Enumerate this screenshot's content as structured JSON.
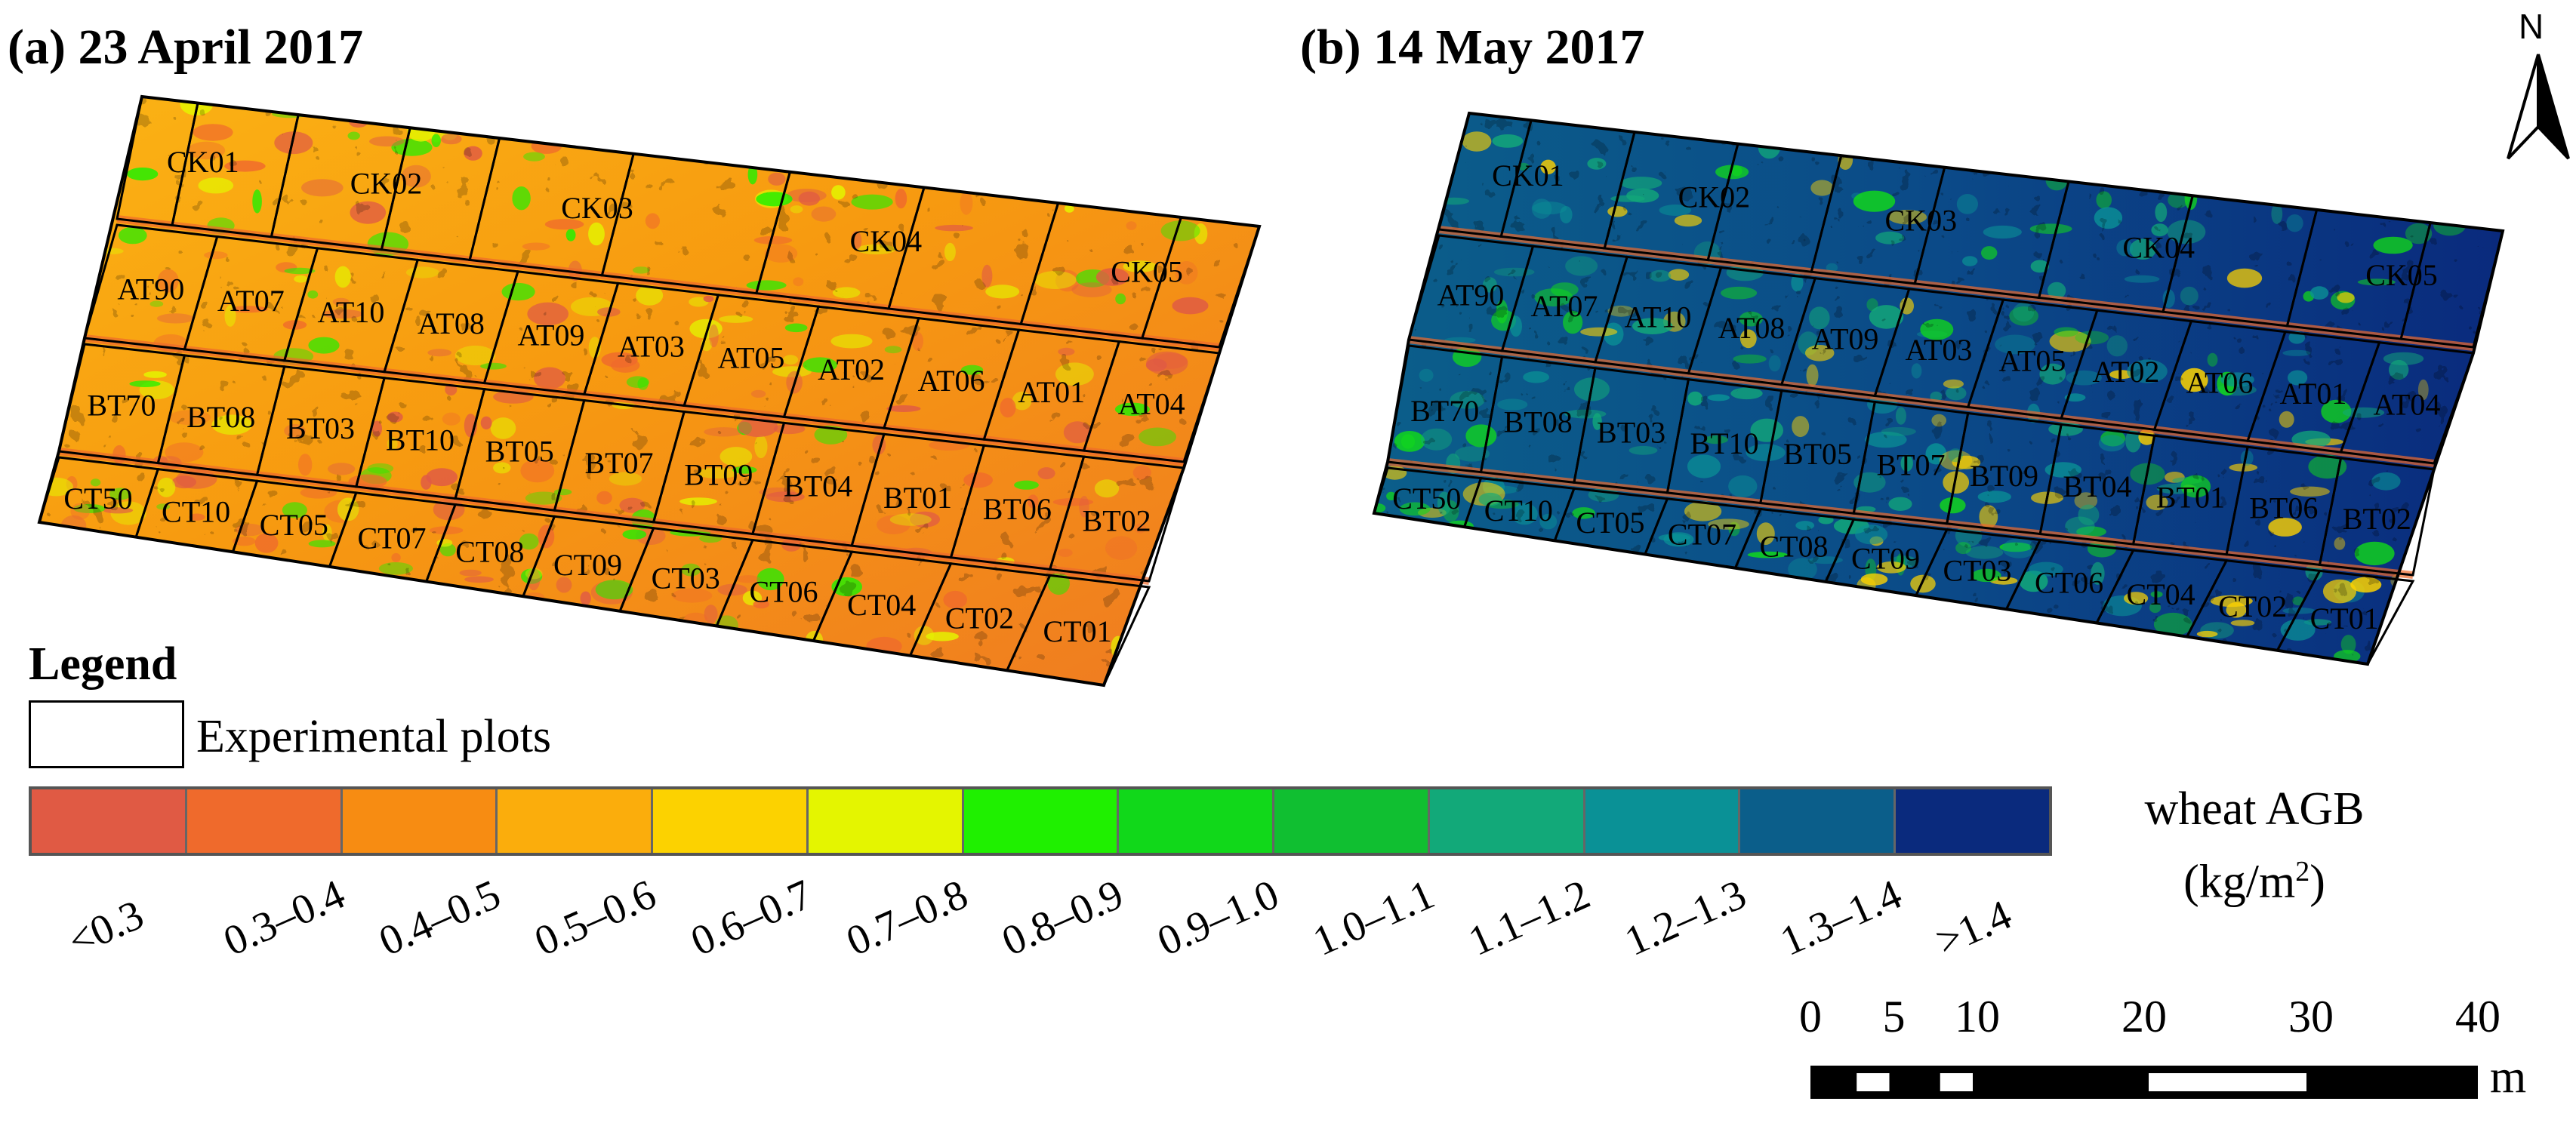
{
  "panels": [
    {
      "title": "(a)  23 April 2017",
      "rows": [
        [
          "CK01",
          "CK02",
          "CK03",
          "CK04",
          "CK05"
        ],
        [
          "AT90",
          "AT07",
          "AT10",
          "AT08",
          "AT09",
          "AT03",
          "AT05",
          "AT02",
          "AT06",
          "AT01",
          "AT04"
        ],
        [
          "BT70",
          "BT08",
          "BT03",
          "BT10",
          "BT05",
          "BT07",
          "BT09",
          "BT04",
          "BT01",
          "BT06",
          "BT02"
        ],
        [
          "CT50",
          "CT10",
          "CT05",
          "CT07",
          "CT08",
          "CT09",
          "CT03",
          "CT06",
          "CT04",
          "CT02",
          "CT01"
        ]
      ]
    },
    {
      "title": "(b)  14 May 2017",
      "rows": [
        [
          "CK01",
          "CK02",
          "CK03",
          "CK04",
          "CK05"
        ],
        [
          "AT90",
          "AT07",
          "AT10",
          "AT08",
          "AT09",
          "AT03",
          "AT05",
          "AT02",
          "AT06",
          "AT01",
          "AT04"
        ],
        [
          "BT70",
          "BT08",
          "BT03",
          "BT10",
          "BT05",
          "BT07",
          "BT09",
          "BT04",
          "BT01",
          "BT06",
          "BT02"
        ],
        [
          "CT50",
          "CT10",
          "CT05",
          "CT07",
          "CT08",
          "CT09",
          "CT03",
          "CT06",
          "CT04",
          "CT02",
          "CT01"
        ]
      ]
    }
  ],
  "legend": {
    "heading": "Legend",
    "plots_label": "Experimental plots",
    "quantity": "wheat AGB",
    "unit_base": "(kg/m",
    "unit_exp": "2",
    "unit_close": ")"
  },
  "classes": [
    {
      "label": "<0.3",
      "color": "#e05a44"
    },
    {
      "label": "0.3–0.4",
      "color": "#ef6a2c"
    },
    {
      "label": "0.4–0.5",
      "color": "#f78c12"
    },
    {
      "label": "0.5–0.6",
      "color": "#fbad0c"
    },
    {
      "label": "0.6–0.7",
      "color": "#fcd200"
    },
    {
      "label": "0.7–0.8",
      "color": "#e4f500"
    },
    {
      "label": "0.8–0.9",
      "color": "#1ff000"
    },
    {
      "label": "0.9–1.0",
      "color": "#11d81a"
    },
    {
      "label": "1.0–1.1",
      "color": "#10bf31"
    },
    {
      "label": "1.1–1.2",
      "color": "#12a979"
    },
    {
      "label": "1.2–1.3",
      "color": "#0a9196"
    },
    {
      "label": "1.3–1.4",
      "color": "#0b5e8a"
    },
    {
      "label": ">1.4",
      "color": "#0a2a7d"
    }
  ],
  "north": "N",
  "scale_bar": {
    "ticks": [
      "0",
      "5",
      "10",
      "20",
      "30",
      "40"
    ],
    "unit": "m"
  }
}
